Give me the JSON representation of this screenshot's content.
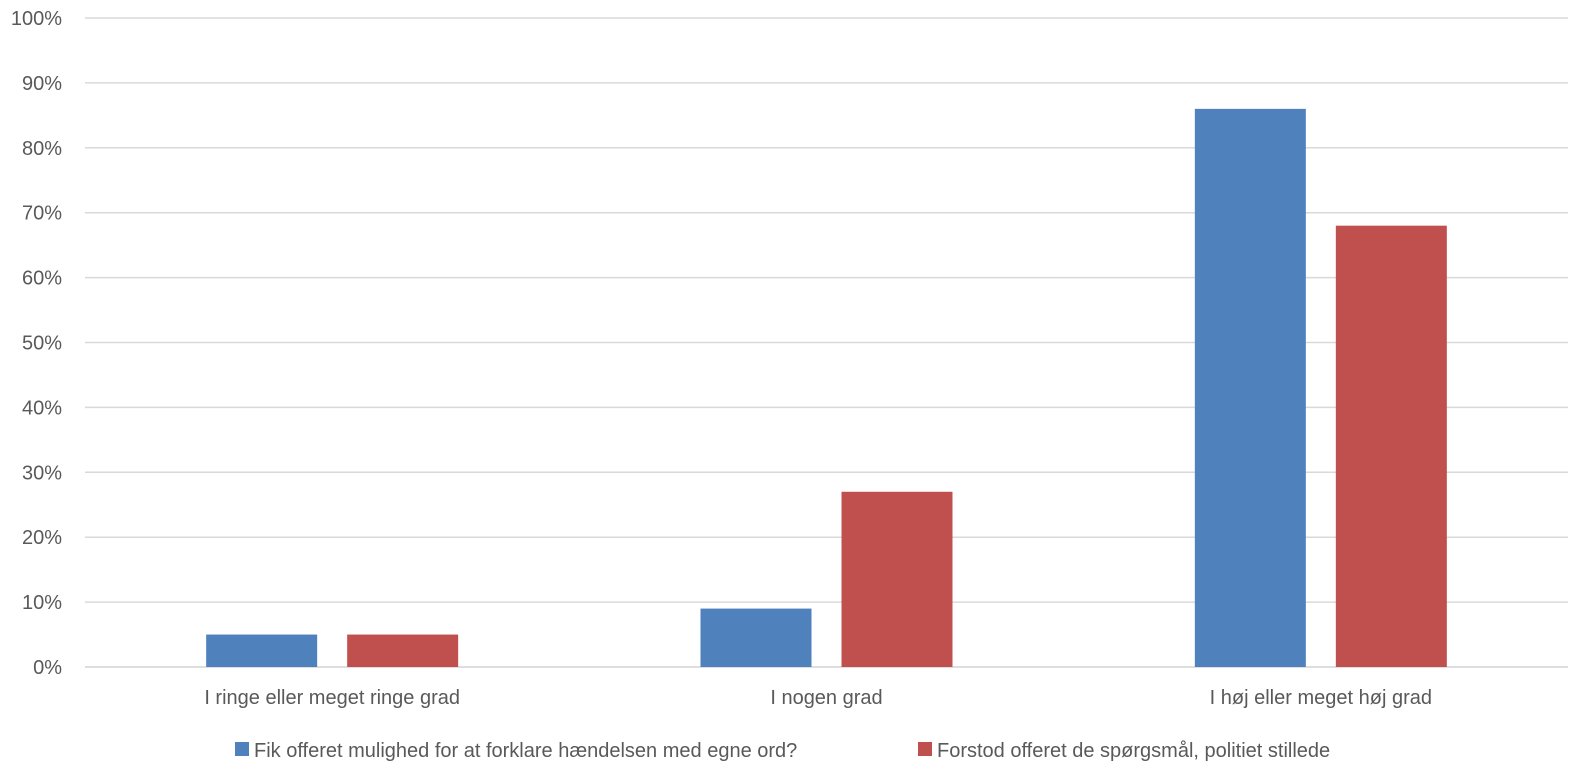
{
  "chart_data": {
    "type": "bar",
    "categories": [
      "I ringe eller meget ringe grad",
      "I nogen grad",
      "I høj eller meget høj grad"
    ],
    "series": [
      {
        "name": "Fik offeret mulighed for at forklare hændelsen med egne ord?",
        "values": [
          5,
          9,
          86
        ],
        "color": "#4F81BD"
      },
      {
        "name": "Forstod offeret de spørgsmål, politiet stillede",
        "values": [
          5,
          27,
          68
        ],
        "color": "#C0504D"
      }
    ],
    "ylim": [
      0,
      100
    ],
    "yticks": [
      "0%",
      "10%",
      "20%",
      "30%",
      "40%",
      "50%",
      "60%",
      "70%",
      "80%",
      "90%",
      "100%"
    ],
    "grid": true,
    "legend_position": "bottom",
    "gridline_color": "#D9D9D9"
  }
}
